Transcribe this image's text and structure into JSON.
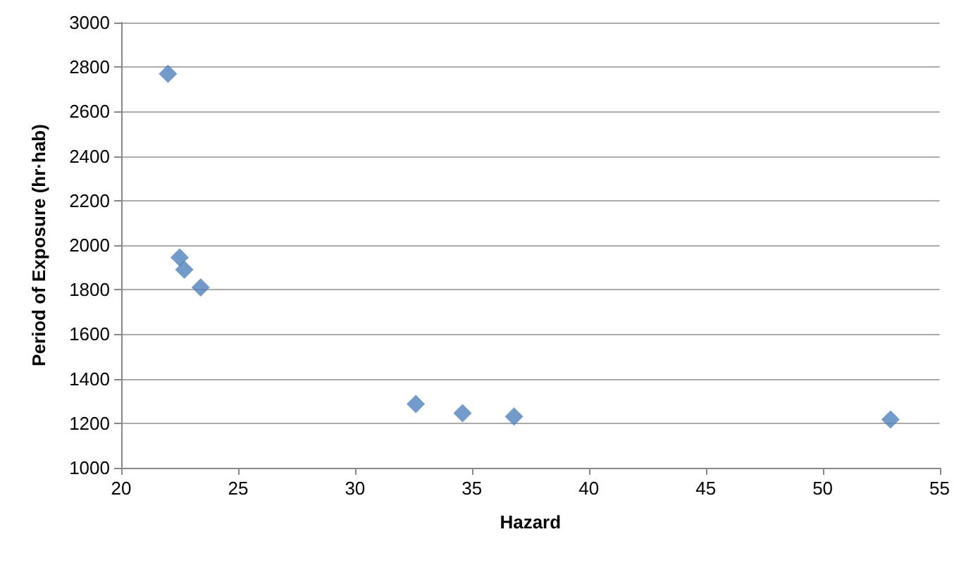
{
  "chart_data": {
    "type": "scatter",
    "xlabel": "Hazard",
    "ylabel": "Period of Exposure (hr·hab)",
    "x": [
      22.0,
      22.5,
      22.7,
      23.4,
      32.6,
      34.6,
      36.8,
      52.9
    ],
    "series": [
      {
        "color": "#4f81bd",
        "values": [
          2770,
          1945,
          1890,
          1810,
          1286,
          1245,
          1230,
          1217
        ]
      }
    ],
    "xlim": [
      20,
      55
    ],
    "xticks": [
      20,
      25,
      30,
      35,
      40,
      45,
      50,
      55
    ],
    "ylim": [
      1000,
      3000
    ],
    "yticks": [
      1000,
      1200,
      1400,
      1600,
      1800,
      2000,
      2200,
      2400,
      2600,
      2800,
      3000
    ],
    "grid": "y",
    "marker": "diamond"
  }
}
